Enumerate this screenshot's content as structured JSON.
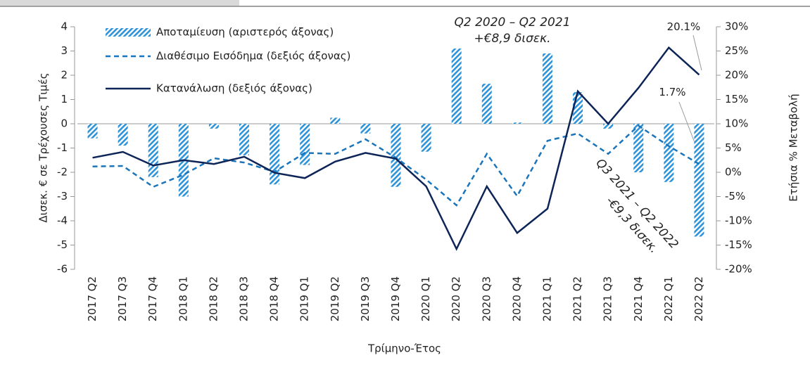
{
  "chart_data": {
    "type": "combo",
    "x_label": "Τρίμηνο-Έτος",
    "y_label": "Δισεκ. € σε Τρέχουσες Τιμές",
    "y2_label": "Ετήσια % Μεταβολή",
    "categories": [
      "2017 Q2",
      "2017 Q3",
      "2017 Q4",
      "2018 Q1",
      "2018 Q2",
      "2018 Q3",
      "2018 Q4",
      "2019 Q1",
      "2019 Q2",
      "2019 Q3",
      "2019 Q4",
      "2020 Q1",
      "2020 Q2",
      "2020 Q3",
      "2020 Q4",
      "2021 Q1",
      "2021 Q2",
      "2021 Q3",
      "2021 Q4",
      "2022 Q1",
      "2022 Q2"
    ],
    "ylim": [
      -6,
      4
    ],
    "yticks": [
      -6,
      -5,
      -4,
      -3,
      -2,
      -1,
      0,
      1,
      2,
      3,
      4
    ],
    "y2lim": [
      -20,
      30
    ],
    "y2ticks": [
      {
        "value": -20,
        "label": "-20%"
      },
      {
        "value": -15,
        "label": "-15%"
      },
      {
        "value": -10,
        "label": "-10%"
      },
      {
        "value": -5,
        "label": "-5%"
      },
      {
        "value": 0,
        "label": "0%"
      },
      {
        "value": 5,
        "label": "5%"
      },
      {
        "value": 10,
        "label": "10%"
      },
      {
        "value": 15,
        "label": "15%"
      },
      {
        "value": 20,
        "label": "20%"
      },
      {
        "value": 25,
        "label": "25%"
      },
      {
        "value": 30,
        "label": "30%"
      }
    ],
    "series": [
      {
        "name": "Αποταμίευση (αριστερός άξονας)",
        "type": "bar",
        "axis": "y",
        "color": "#2f93d8",
        "values": [
          -0.6,
          -0.9,
          -2.2,
          -3.0,
          -0.2,
          -1.3,
          -2.5,
          -1.7,
          0.25,
          -0.4,
          -2.6,
          -1.15,
          3.1,
          1.65,
          0.05,
          2.9,
          1.3,
          -0.2,
          -2.0,
          -2.4,
          -4.65
        ]
      },
      {
        "name": "Διαθέσιμο Εισόδημα (δεξιός άξονας)",
        "type": "line",
        "style": "dashed",
        "axis": "y2",
        "color": "#1b75bb",
        "values": [
          1.2,
          1.3,
          -3.0,
          -0.5,
          2.9,
          2.0,
          0.1,
          4.0,
          3.8,
          6.8,
          3.0,
          -1.5,
          -6.8,
          3.8,
          -4.9,
          6.5,
          8.0,
          3.8,
          9.6,
          5.4,
          1.7
        ],
        "value_labels": [
          null,
          null,
          null,
          null,
          null,
          null,
          null,
          null,
          null,
          null,
          null,
          null,
          null,
          null,
          null,
          null,
          null,
          null,
          null,
          null,
          "1.7%"
        ]
      },
      {
        "name": "Κατανάλωση (δεξιός άξονας)",
        "type": "line",
        "style": "solid",
        "axis": "y2",
        "color": "#0d2456",
        "values": [
          3.0,
          4.2,
          1.4,
          2.5,
          1.7,
          3.2,
          -0.1,
          -1.2,
          2.2,
          4.0,
          2.8,
          -2.9,
          -15.8,
          -2.9,
          -12.5,
          -7.5,
          16.7,
          10.0,
          17.4,
          25.7,
          20.1
        ],
        "value_labels": [
          null,
          null,
          null,
          null,
          null,
          null,
          null,
          null,
          null,
          null,
          null,
          null,
          null,
          null,
          null,
          null,
          null,
          null,
          null,
          null,
          "20.1%"
        ]
      }
    ],
    "annotations": [
      "Q2 2020 – Q2 2021",
      "+€8,9 δισεκ.",
      "Q3 2021 – Q2 2022",
      "-€9,3 δισεκ."
    ]
  }
}
